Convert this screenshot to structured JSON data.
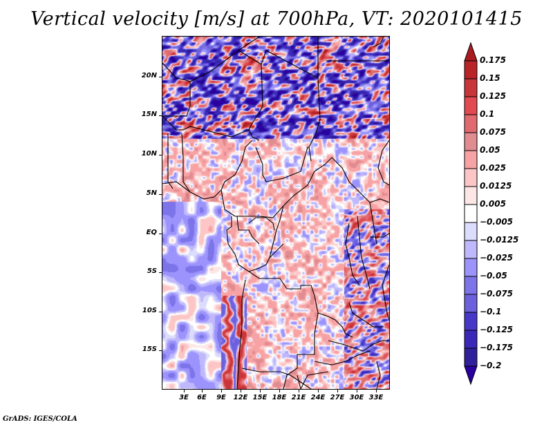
{
  "chart_data": {
    "type": "heatmap",
    "title": "Vertical velocity [m/s] at 700hPa, VT: 2020101415",
    "variable": "Vertical velocity",
    "units": "m/s",
    "level": "700hPa",
    "valid_time": "2020101415",
    "xlabel": "",
    "ylabel": "",
    "x_range_deg": [
      0,
      35
    ],
    "y_range_deg": [
      -20,
      25
    ],
    "x_ticks": [
      "3E",
      "6E",
      "9E",
      "12E",
      "15E",
      "18E",
      "21E",
      "24E",
      "27E",
      "30E",
      "33E"
    ],
    "x_tick_values": [
      3,
      6,
      9,
      12,
      15,
      18,
      21,
      24,
      27,
      30,
      33
    ],
    "y_ticks": [
      "20N",
      "15N",
      "10N",
      "5N",
      "EQ",
      "5S",
      "10S",
      "15S"
    ],
    "y_tick_values": [
      20,
      15,
      10,
      5,
      0,
      -5,
      -10,
      -15
    ],
    "colorbar": {
      "orientation": "vertical",
      "extend": "both",
      "levels": [
        0.175,
        0.15,
        0.125,
        0.1,
        0.075,
        0.05,
        0.025,
        0.0125,
        0.005,
        -0.005,
        -0.0125,
        -0.025,
        -0.05,
        -0.075,
        -0.1,
        -0.125,
        -0.175,
        -0.2
      ],
      "labels": [
        "0.175",
        "0.15",
        "0.125",
        "0.1",
        "0.075",
        "0.05",
        "0.025",
        "0.0125",
        "0.005",
        "−0.005",
        "−0.0125",
        "−0.025",
        "−0.05",
        "−0.075",
        "−0.1",
        "−0.125",
        "−0.175",
        "−0.2"
      ],
      "colors": [
        "#a81c20",
        "#b82428",
        "#c8363a",
        "#e04a50",
        "#e06a70",
        "#e08c90",
        "#f7a3a5",
        "#fcc6c6",
        "#fde6e6",
        "#ffffff",
        "#dcdcfc",
        "#c0b8fc",
        "#9c94fc",
        "#7c74e8",
        "#6c60dc",
        "#4838c8",
        "#3c28b8",
        "#30209c",
        "#2a00a0"
      ]
    },
    "regions_summary": [
      {
        "area": "Sahel / Sahara (north of 12N)",
        "pattern": "strong alternating ascent and descent streaks, mostly negative (blue) with red bands"
      },
      {
        "area": "Central Africa (5N to 10S, land)",
        "pattern": "weak positive (light red) dominant"
      },
      {
        "area": "Gulf of Guinea / South Atlantic",
        "pattern": "weak negative (light blue)"
      },
      {
        "area": "Angola coast / escarpment (10S-18S, 12-14E)",
        "pattern": "strong positive and negative alternating bands"
      },
      {
        "area": "East African Rift (28-32E)",
        "pattern": "strong mixed values"
      }
    ]
  },
  "footer": "GrADS: IGES/COLA"
}
